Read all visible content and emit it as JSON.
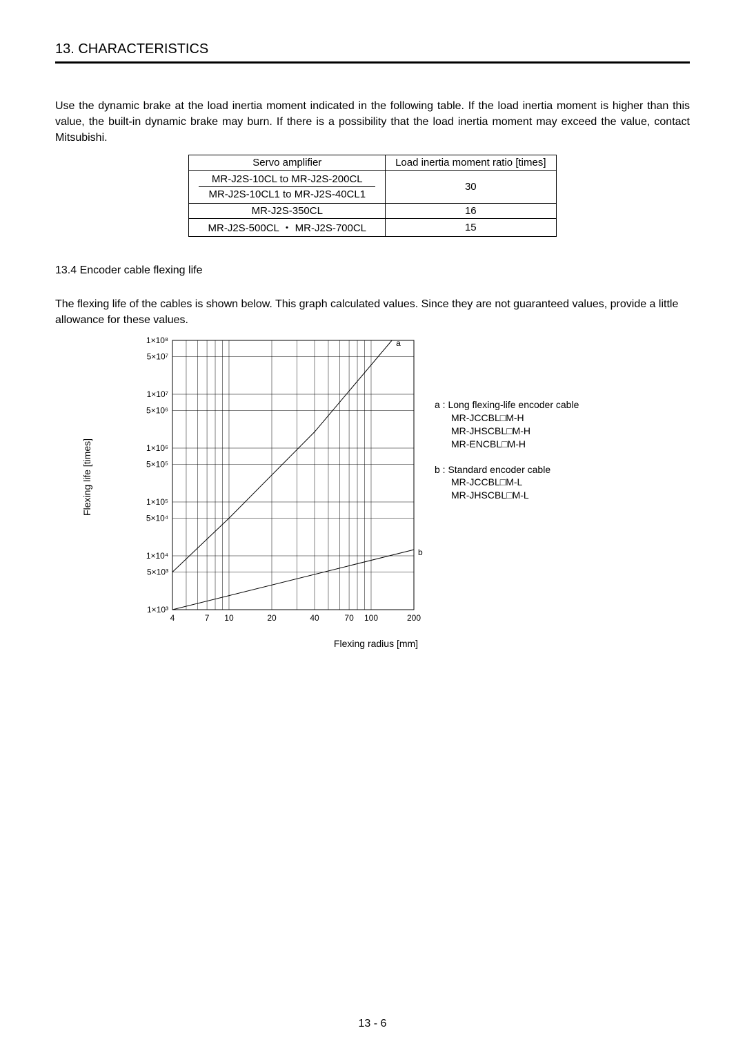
{
  "header": {
    "title": "13. CHARACTERISTICS"
  },
  "intro": {
    "text": "Use the dynamic brake at the load inertia moment indicated in the following table. If the load inertia moment is higher than this value, the built-in dynamic brake may burn. If there is a possibility that the load inertia moment may exceed the value, contact Mitsubishi."
  },
  "table": {
    "columns": [
      "Servo amplifier",
      "Load inertia moment ratio [times]"
    ],
    "rows": [
      {
        "cells": [
          "MR-J2S-10CL to MR-J2S-200CL",
          "30"
        ],
        "sub": "MR-J2S-10CL1 to MR-J2S-40CL1"
      },
      {
        "cells": [
          "MR-J2S-350CL",
          "16"
        ]
      },
      {
        "cells": [
          "MR-J2S-500CL ・ MR-J2S-700CL",
          "15"
        ]
      }
    ]
  },
  "subsection": {
    "title": "13.4 Encoder cable flexing life",
    "text": "The flexing life of the cables is shown below. This graph calculated values. Since they are not guaranteed values, provide a little allowance for these values."
  },
  "chart": {
    "type": "line",
    "y_label": "Flexing life [times]",
    "x_label": "Flexing radius [mm]",
    "x_ticks": [
      4,
      7,
      10,
      20,
      40,
      70,
      100,
      200
    ],
    "x_scale": "log",
    "y_scale": "log",
    "y_ticks_labels": [
      "1×10³",
      "5×10³",
      "1×10⁴",
      "5×10⁴",
      "1×10⁵",
      "5×10⁵",
      "1×10⁶",
      "5×10⁶",
      "1×10⁷",
      "5×10⁷",
      "1×10⁸"
    ],
    "y_ticks_values": [
      1000,
      5000,
      10000,
      50000,
      100000,
      500000,
      1000000,
      5000000,
      10000000,
      50000000,
      100000000
    ],
    "background_color": "#ffffff",
    "axis_color": "#000000",
    "grid_color": "#000000",
    "line_color": "#000000",
    "line_width": 1,
    "font_size": 12,
    "series": [
      {
        "name": "a",
        "label": "a",
        "points": [
          {
            "x": 4,
            "y": 5000
          },
          {
            "x": 10,
            "y": 50000
          },
          {
            "x": 40,
            "y": 2000000
          },
          {
            "x": 140,
            "y": 100000000
          }
        ]
      },
      {
        "name": "b",
        "label": "b",
        "points": [
          {
            "x": 4,
            "y": 1000
          },
          {
            "x": 200,
            "y": 13000
          }
        ]
      }
    ],
    "legend": {
      "a": {
        "title": "a :  Long flexing-life encoder cable",
        "items": [
          "MR-JCCBL□M-H",
          "MR-JHSCBL□M-H",
          "MR-ENCBL□M-H"
        ]
      },
      "b": {
        "title": "b :  Standard encoder cable",
        "items": [
          "MR-JCCBL□M-L",
          "MR-JHSCBL□M-L"
        ]
      }
    }
  },
  "footer": {
    "page": "13 -  6"
  }
}
